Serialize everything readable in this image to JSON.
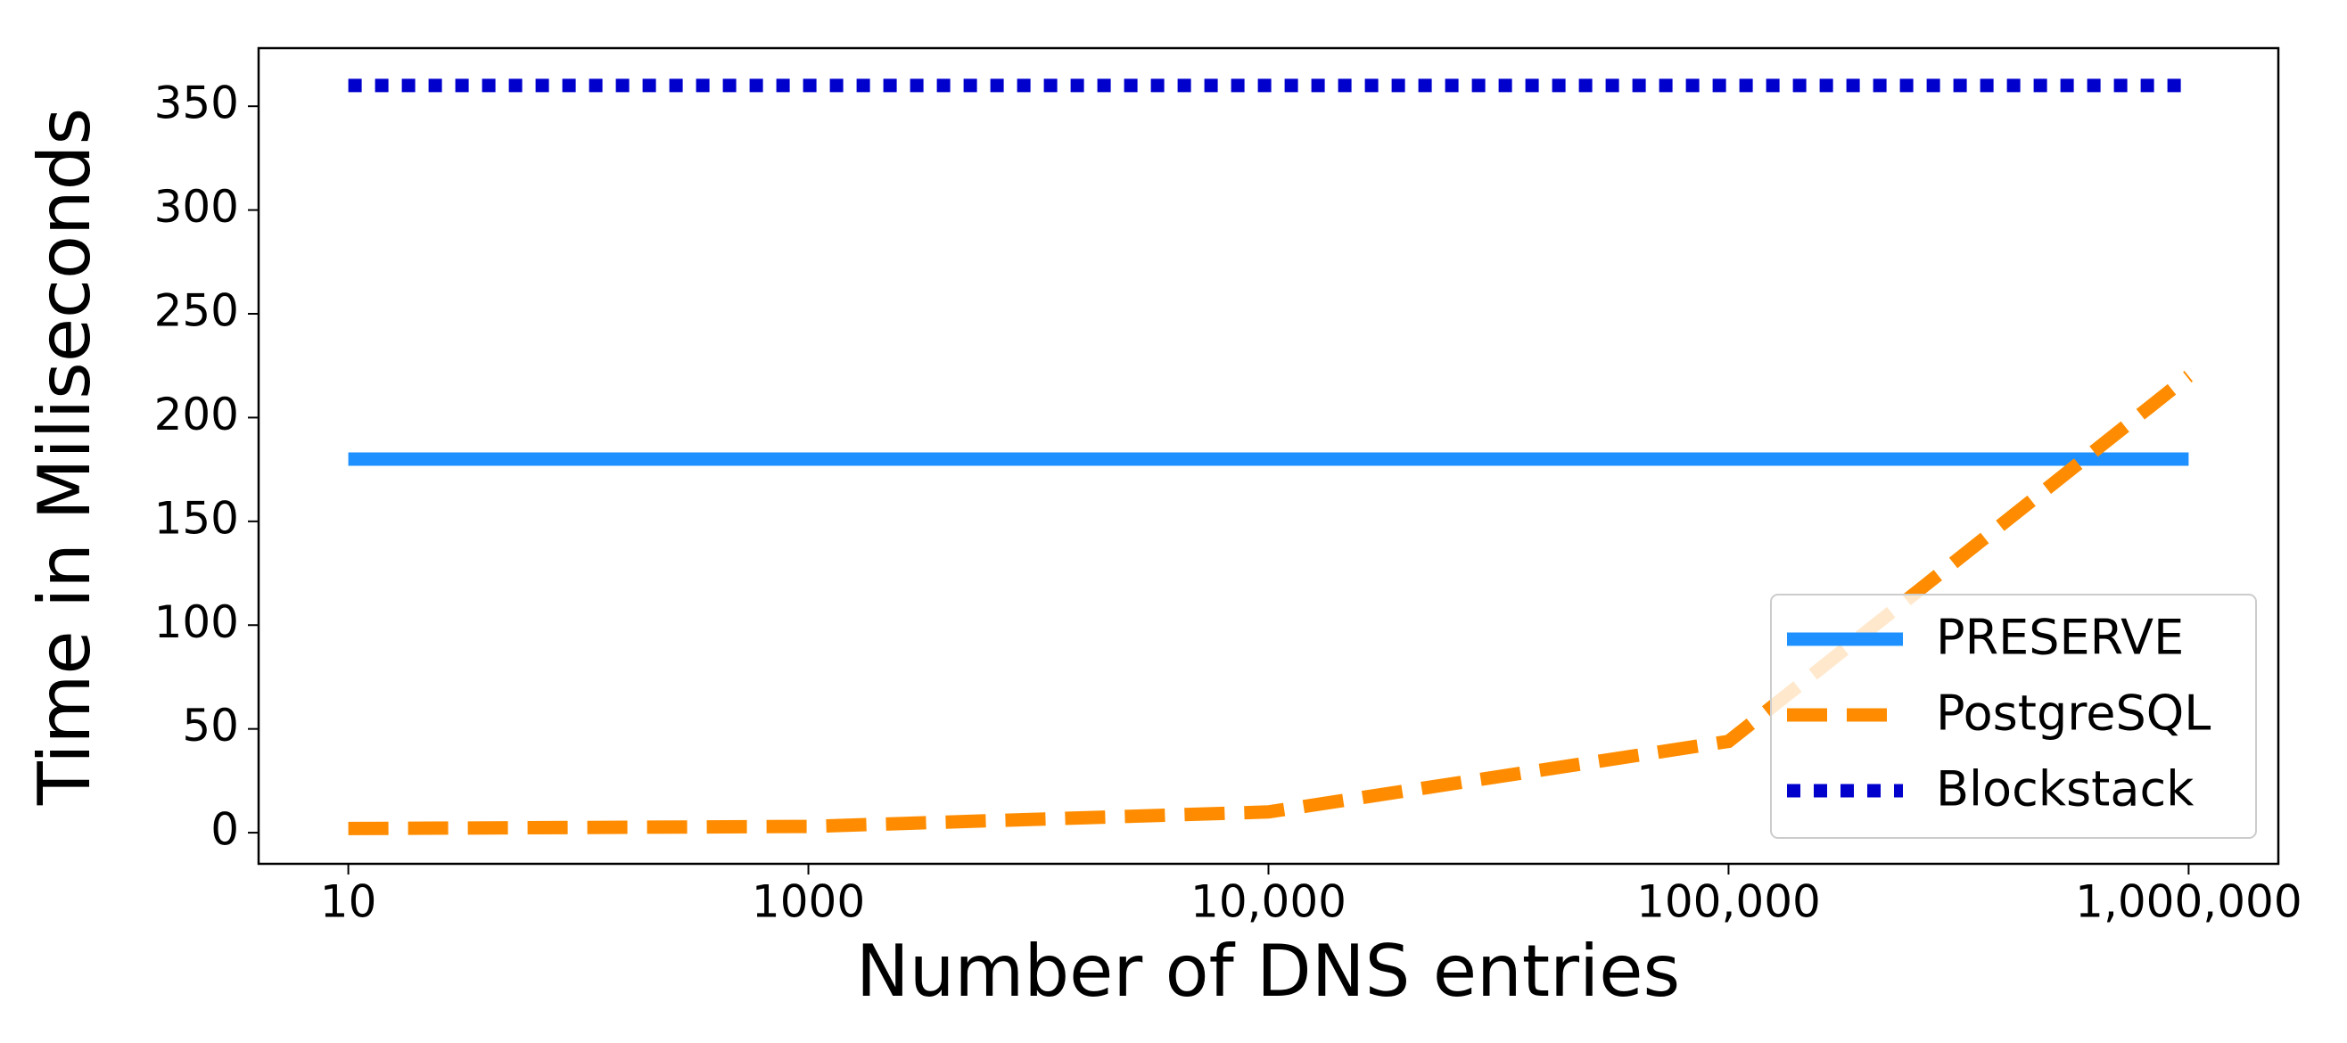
{
  "chart_data": {
    "type": "line",
    "x_label": "Number of DNS entries",
    "y_label": "Time in Miliseconds",
    "categories": [
      "10",
      "1000",
      "10,000",
      "100,000",
      "1,000,000"
    ],
    "series": [
      {
        "name": "PRESERVE",
        "color": "#1e90ff",
        "dash": "solid",
        "values": [
          180,
          180,
          180,
          180,
          180
        ]
      },
      {
        "name": "PostgreSQL",
        "color": "#ff8c00",
        "dash": "dashed",
        "values": [
          2,
          3,
          10,
          44,
          220
        ]
      },
      {
        "name": "Blockstack",
        "color": "#0000cd",
        "dash": "dotted",
        "values": [
          360,
          360,
          360,
          360,
          360
        ]
      }
    ],
    "ylim": [
      -15,
      378
    ],
    "yticks": [
      0,
      50,
      100,
      150,
      200,
      250,
      300,
      350
    ],
    "grid": false,
    "legend": "lower right"
  }
}
